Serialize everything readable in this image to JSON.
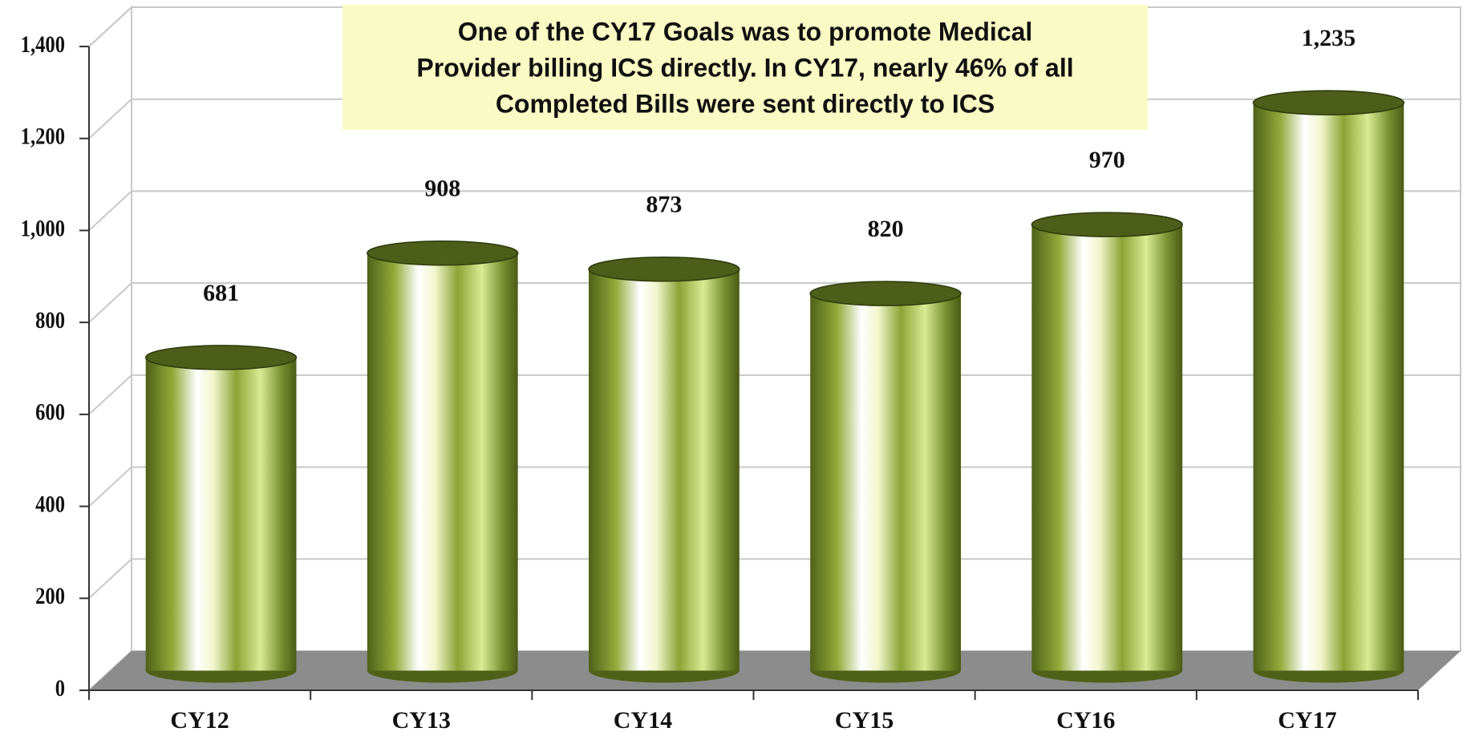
{
  "chart_data": {
    "type": "bar",
    "annotation": [
      "One of the CY17 Goals was to promote Medical",
      "Provider billing ICS directly.  In CY17, nearly 46% of all",
      "Completed Bills were sent directly to ICS"
    ],
    "categories": [
      "CY12",
      "CY13",
      "CY14",
      "CY15",
      "CY16",
      "CY17"
    ],
    "values": [
      681,
      908,
      873,
      820,
      970,
      1235
    ],
    "value_labels": [
      "681",
      "908",
      "873",
      "820",
      "970",
      "1,235"
    ],
    "color": "#6b8022",
    "ylim": [
      0,
      1400
    ],
    "yticks": [
      0,
      200,
      400,
      600,
      800,
      {
        "value": 1000,
        "label": "1,000"
      },
      {
        "value": 1200,
        "label": "1,200"
      },
      {
        "value": 1400,
        "label": "1,400"
      }
    ],
    "grid": true
  }
}
